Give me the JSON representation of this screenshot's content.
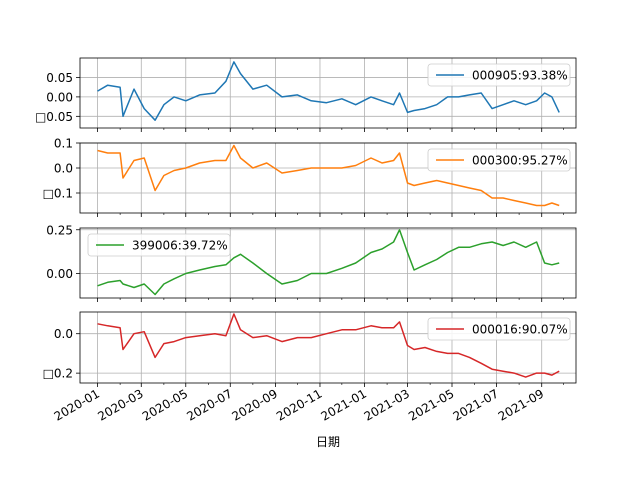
{
  "chart_data": {
    "type": "line",
    "xlabel": "日期",
    "x_ticks": [
      "2020-01",
      "2020-03",
      "2020-05",
      "2020-07",
      "2020-09",
      "2020-11",
      "2021-01",
      "2021-03",
      "2021-05",
      "2021-07",
      "2021-09"
    ],
    "grid": true,
    "panels": [
      {
        "series_name": "000905:93.38%",
        "color": "#1f77b4",
        "legend_position": "upper right",
        "y_ticks": [
          {
            "value": 0.05,
            "label": "0.05"
          },
          {
            "value": 0.0,
            "label": "0.00"
          },
          {
            "value": -0.05,
            "label": "□0.05"
          }
        ],
        "ylim": [
          -0.08,
          0.1
        ],
        "x": [
          "2020-01-01",
          "2020-01-15",
          "2020-02-01",
          "2020-02-05",
          "2020-02-20",
          "2020-03-05",
          "2020-03-20",
          "2020-04-01",
          "2020-04-15",
          "2020-05-01",
          "2020-05-20",
          "2020-06-10",
          "2020-06-25",
          "2020-07-06",
          "2020-07-15",
          "2020-08-01",
          "2020-08-20",
          "2020-09-10",
          "2020-10-01",
          "2020-10-20",
          "2020-11-10",
          "2020-12-01",
          "2020-12-20",
          "2021-01-10",
          "2021-01-25",
          "2021-02-10",
          "2021-02-18",
          "2021-03-01",
          "2021-03-10",
          "2021-03-25",
          "2021-04-10",
          "2021-04-25",
          "2021-05-10",
          "2021-05-25",
          "2021-06-10",
          "2021-06-25",
          "2021-07-10",
          "2021-07-25",
          "2021-08-10",
          "2021-08-25",
          "2021-09-05",
          "2021-09-15",
          "2021-09-25"
        ],
        "values": [
          0.015,
          0.03,
          0.025,
          -0.05,
          0.02,
          -0.03,
          -0.06,
          -0.02,
          0.0,
          -0.01,
          0.005,
          0.01,
          0.04,
          0.09,
          0.06,
          0.02,
          0.03,
          0.0,
          0.005,
          -0.01,
          -0.015,
          -0.005,
          -0.02,
          0.0,
          -0.01,
          -0.02,
          0.01,
          -0.04,
          -0.035,
          -0.03,
          -0.02,
          0.0,
          0.0,
          0.005,
          0.01,
          -0.03,
          -0.02,
          -0.01,
          -0.02,
          -0.01,
          0.01,
          0.0,
          -0.04
        ]
      },
      {
        "series_name": "000300:95.27%",
        "color": "#ff7f0e",
        "legend_position": "upper right",
        "y_ticks": [
          {
            "value": 0.1,
            "label": "0.1"
          },
          {
            "value": 0.0,
            "label": "0.0"
          },
          {
            "value": -0.1,
            "label": "□0.1"
          }
        ],
        "ylim": [
          -0.18,
          0.1
        ],
        "x": [
          "2020-01-01",
          "2020-01-15",
          "2020-02-01",
          "2020-02-05",
          "2020-02-20",
          "2020-03-05",
          "2020-03-20",
          "2020-04-01",
          "2020-04-15",
          "2020-05-01",
          "2020-05-20",
          "2020-06-10",
          "2020-06-25",
          "2020-07-06",
          "2020-07-15",
          "2020-08-01",
          "2020-08-20",
          "2020-09-10",
          "2020-10-01",
          "2020-10-20",
          "2020-11-10",
          "2020-12-01",
          "2020-12-20",
          "2021-01-10",
          "2021-01-25",
          "2021-02-10",
          "2021-02-18",
          "2021-03-01",
          "2021-03-10",
          "2021-03-25",
          "2021-04-10",
          "2021-04-25",
          "2021-05-10",
          "2021-05-25",
          "2021-06-10",
          "2021-06-25",
          "2021-07-10",
          "2021-07-25",
          "2021-08-10",
          "2021-08-25",
          "2021-09-05",
          "2021-09-15",
          "2021-09-25"
        ],
        "values": [
          0.07,
          0.06,
          0.06,
          -0.04,
          0.03,
          0.04,
          -0.09,
          -0.03,
          -0.01,
          0.0,
          0.02,
          0.03,
          0.03,
          0.09,
          0.04,
          0.0,
          0.02,
          -0.02,
          -0.01,
          0.0,
          0.0,
          0.0,
          0.01,
          0.04,
          0.02,
          0.03,
          0.06,
          -0.06,
          -0.07,
          -0.06,
          -0.05,
          -0.06,
          -0.07,
          -0.08,
          -0.09,
          -0.12,
          -0.12,
          -0.13,
          -0.14,
          -0.15,
          -0.15,
          -0.14,
          -0.15
        ]
      },
      {
        "series_name": "399006:39.72%",
        "color": "#2ca02c",
        "legend_position": "upper left",
        "y_ticks": [
          {
            "value": 0.25,
            "label": "0.25"
          },
          {
            "value": 0.0,
            "label": "0.00"
          }
        ],
        "ylim": [
          -0.14,
          0.26
        ],
        "x": [
          "2020-01-01",
          "2020-01-15",
          "2020-02-01",
          "2020-02-05",
          "2020-02-20",
          "2020-03-05",
          "2020-03-20",
          "2020-04-01",
          "2020-04-15",
          "2020-05-01",
          "2020-05-20",
          "2020-06-10",
          "2020-06-25",
          "2020-07-06",
          "2020-07-15",
          "2020-08-01",
          "2020-08-20",
          "2020-09-10",
          "2020-10-01",
          "2020-10-20",
          "2020-11-10",
          "2020-12-01",
          "2020-12-20",
          "2021-01-10",
          "2021-01-25",
          "2021-02-10",
          "2021-02-18",
          "2021-03-01",
          "2021-03-10",
          "2021-03-25",
          "2021-04-10",
          "2021-04-25",
          "2021-05-10",
          "2021-05-25",
          "2021-06-10",
          "2021-06-25",
          "2021-07-10",
          "2021-07-25",
          "2021-08-10",
          "2021-08-25",
          "2021-09-05",
          "2021-09-15",
          "2021-09-25"
        ],
        "values": [
          -0.07,
          -0.05,
          -0.04,
          -0.06,
          -0.08,
          -0.06,
          -0.12,
          -0.06,
          -0.03,
          0.0,
          0.02,
          0.04,
          0.05,
          0.09,
          0.11,
          0.06,
          0.0,
          -0.06,
          -0.04,
          0.0,
          0.0,
          0.03,
          0.06,
          0.12,
          0.14,
          0.18,
          0.25,
          0.12,
          0.02,
          0.05,
          0.08,
          0.12,
          0.15,
          0.15,
          0.17,
          0.18,
          0.16,
          0.18,
          0.15,
          0.18,
          0.06,
          0.05,
          0.06
        ]
      },
      {
        "series_name": "000016:90.07%",
        "color": "#d62728",
        "legend_position": "upper right",
        "y_ticks": [
          {
            "value": 0.0,
            "label": "0.0"
          },
          {
            "value": -0.2,
            "label": "□0.2"
          }
        ],
        "ylim": [
          -0.25,
          0.11
        ],
        "x": [
          "2020-01-01",
          "2020-01-15",
          "2020-02-01",
          "2020-02-05",
          "2020-02-20",
          "2020-03-05",
          "2020-03-20",
          "2020-04-01",
          "2020-04-15",
          "2020-05-01",
          "2020-05-20",
          "2020-06-10",
          "2020-06-25",
          "2020-07-06",
          "2020-07-15",
          "2020-08-01",
          "2020-08-20",
          "2020-09-10",
          "2020-10-01",
          "2020-10-20",
          "2020-11-10",
          "2020-12-01",
          "2020-12-20",
          "2021-01-10",
          "2021-01-25",
          "2021-02-10",
          "2021-02-18",
          "2021-03-01",
          "2021-03-10",
          "2021-03-25",
          "2021-04-10",
          "2021-04-25",
          "2021-05-10",
          "2021-05-25",
          "2021-06-10",
          "2021-06-25",
          "2021-07-10",
          "2021-07-25",
          "2021-08-10",
          "2021-08-25",
          "2021-09-05",
          "2021-09-15",
          "2021-09-25"
        ],
        "values": [
          0.05,
          0.04,
          0.03,
          -0.08,
          0.0,
          0.01,
          -0.12,
          -0.05,
          -0.04,
          -0.02,
          -0.01,
          0.0,
          -0.01,
          0.1,
          0.02,
          -0.02,
          -0.01,
          -0.04,
          -0.02,
          -0.02,
          0.0,
          0.02,
          0.02,
          0.04,
          0.03,
          0.03,
          0.06,
          -0.06,
          -0.08,
          -0.07,
          -0.09,
          -0.1,
          -0.1,
          -0.12,
          -0.15,
          -0.18,
          -0.19,
          -0.2,
          -0.22,
          -0.2,
          -0.2,
          -0.21,
          -0.19
        ]
      }
    ]
  }
}
